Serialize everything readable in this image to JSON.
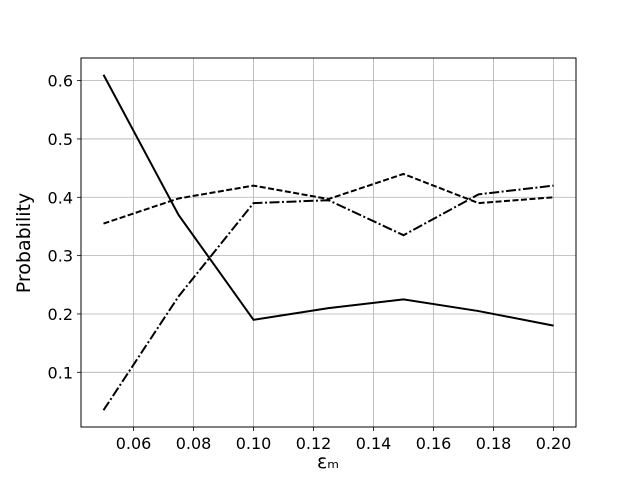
{
  "chart_data": {
    "type": "line",
    "xlabel": "εₘ",
    "ylabel": "Probability",
    "x": [
      0.05,
      0.075,
      0.1,
      0.125,
      0.15,
      0.175,
      0.2
    ],
    "series": [
      {
        "color": "#000000",
        "linestyle": "solid",
        "values": [
          0.61,
          0.37,
          0.19,
          0.21,
          0.225,
          0.205,
          0.18
        ]
      },
      {
        "color": "#000000",
        "linestyle": "dashed",
        "values": [
          0.355,
          0.398,
          0.42,
          0.397,
          0.44,
          0.39,
          0.4
        ]
      },
      {
        "color": "#000000",
        "linestyle": "dashdot",
        "values": [
          0.035,
          0.23,
          0.39,
          0.395,
          0.335,
          0.405,
          0.42
        ]
      }
    ],
    "xlim": [
      0.0425,
      0.2075
    ],
    "ylim": [
      0.00625,
      0.63875
    ],
    "xticks": [
      0.06,
      0.08,
      {
        "value": 0.1,
        "label": "0.10"
      },
      0.12,
      0.14,
      0.16,
      0.18,
      {
        "value": 0.2,
        "label": "0.20"
      }
    ],
    "yticks": [
      0.1,
      0.2,
      0.3,
      0.4,
      0.5,
      0.6
    ],
    "grid": true
  }
}
